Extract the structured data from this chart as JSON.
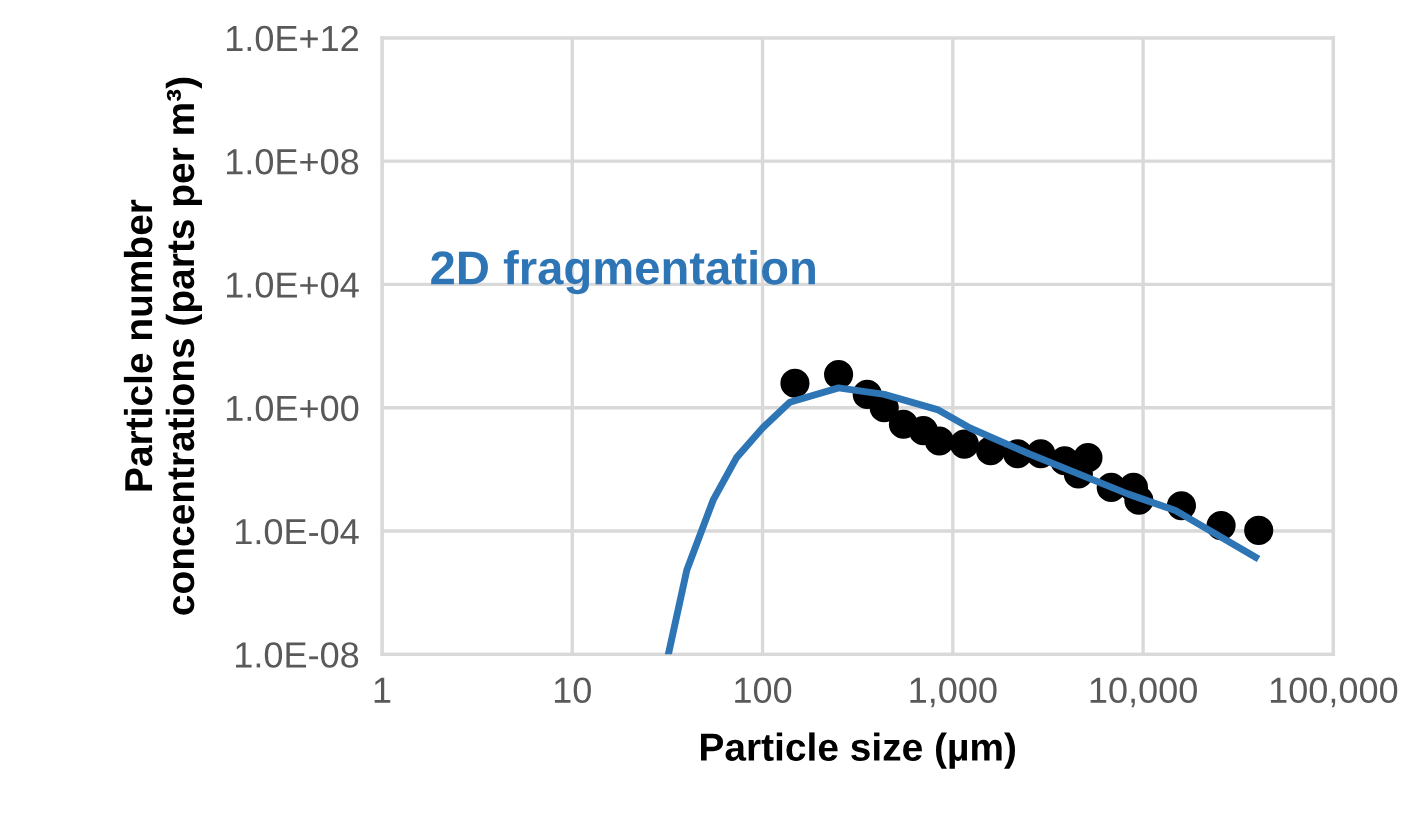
{
  "chart_data": {
    "type": "scatter",
    "xlabel": "Particle size (µm)",
    "ylabel": "Particle number\nconcentrations (parts per m³)",
    "log": "xy",
    "grid": true,
    "legend": false,
    "xlim": [
      1,
      100000
    ],
    "ylim": [
      1e-08,
      1000000000000.0
    ],
    "xticks": [
      {
        "value": 1,
        "label": "1"
      },
      {
        "value": 10,
        "label": "10"
      },
      {
        "value": 100,
        "label": "100"
      },
      {
        "value": 1000,
        "label": "1,000"
      },
      {
        "value": 10000,
        "label": "10,000"
      },
      {
        "value": 100000,
        "label": "100,000"
      }
    ],
    "yticks": [
      {
        "value": 1e-08,
        "label": "1.0E-08"
      },
      {
        "value": 0.0001,
        "label": "1.0E-04"
      },
      {
        "value": 1,
        "label": "1.0E+00"
      },
      {
        "value": 10000.0,
        "label": "1.0E+04"
      },
      {
        "value": 100000000.0,
        "label": "1.0E+08"
      },
      {
        "value": 1000000000000.0,
        "label": "1.0E+12"
      }
    ],
    "series": [
      {
        "color": "#000000",
        "marker": "circle",
        "x": [
          148,
          251,
          355,
          436,
          550,
          700,
          850,
          1150,
          1580,
          2190,
          2900,
          3870,
          5130,
          4570,
          6800,
          8900,
          9500,
          15900,
          25700,
          40500
        ],
        "values": [
          6.2,
          12,
          2.7,
          1,
          0.29,
          0.18,
          0.083,
          0.066,
          0.04,
          0.032,
          0.032,
          0.019,
          0.024,
          0.0071,
          0.0026,
          0.0026,
          0.001,
          0.00066,
          0.00015,
          0.000105
        ]
      },
      {
        "type": "line",
        "name": "2D fragmentation",
        "color": "#2e75b6",
        "marker": "none",
        "line_style": "solid",
        "x": [
          32,
          40,
          55,
          73,
          100,
          139,
          251,
          436,
          830,
          1230,
          2510,
          8300,
          14800,
          39000
        ],
        "values": [
          1e-08,
          5.4e-06,
          0.001,
          0.024,
          0.22,
          1.5,
          4.4,
          2.7,
          0.87,
          0.22,
          0.032,
          0.0016,
          0.00046,
          1.4e-05
        ]
      }
    ]
  }
}
